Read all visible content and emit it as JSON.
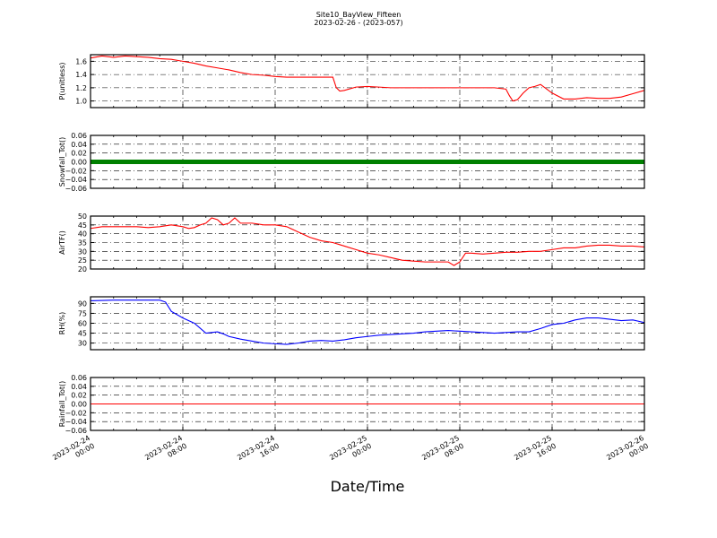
{
  "chart_data": {
    "type": "line",
    "title": "Site10_BayView_Fifteen",
    "subtitle": "2023-02-26 - (2023-057)",
    "xlabel": "Date/Time",
    "x_ticks": [
      "2023-02-24\n00:00",
      "2023-02-24\n08:00",
      "2023-02-24\n16:00",
      "2023-02-25\n00:00",
      "2023-02-25\n08:00",
      "2023-02-25\n16:00",
      "2023-02-26\n00:00"
    ],
    "x_range_hours": [
      0,
      48
    ],
    "grid": true,
    "panels": [
      {
        "ylabel": "P(unitless)",
        "ylim": [
          0.9,
          1.7
        ],
        "yticks": [
          "1.0",
          "1.2",
          "1.4",
          "1.6"
        ],
        "ytick_values": [
          1.0,
          1.2,
          1.4,
          1.6
        ],
        "color": "#ff0000",
        "style": "line",
        "x": [
          0,
          1,
          2,
          3,
          4,
          5,
          6,
          7,
          8,
          9,
          10,
          11,
          12,
          13,
          14,
          15,
          16,
          17,
          18,
          19,
          20,
          21,
          21.3,
          21.6,
          22,
          23,
          24,
          25,
          26,
          27,
          28,
          29,
          30,
          31,
          32,
          33,
          34,
          35,
          36,
          36.3,
          36.6,
          37,
          37.5,
          38,
          38.5,
          39,
          40,
          41,
          42,
          43,
          44,
          45,
          46,
          47,
          48
        ],
        "values": [
          1.65,
          1.68,
          1.66,
          1.68,
          1.67,
          1.66,
          1.64,
          1.63,
          1.6,
          1.57,
          1.53,
          1.5,
          1.47,
          1.43,
          1.4,
          1.39,
          1.37,
          1.36,
          1.36,
          1.36,
          1.36,
          1.36,
          1.2,
          1.15,
          1.16,
          1.21,
          1.22,
          1.21,
          1.2,
          1.2,
          1.2,
          1.2,
          1.2,
          1.2,
          1.2,
          1.2,
          1.2,
          1.2,
          1.18,
          1.08,
          1.0,
          1.02,
          1.12,
          1.2,
          1.22,
          1.25,
          1.12,
          1.03,
          1.03,
          1.05,
          1.04,
          1.04,
          1.06,
          1.11,
          1.16
        ]
      },
      {
        "ylabel": "Snowfall_Tot()",
        "ylim": [
          -0.06,
          0.06
        ],
        "yticks": [
          "0.06",
          "0.04",
          "0.02",
          "0.00",
          "−0.02",
          "−0.04",
          "−0.06"
        ],
        "ytick_values": [
          0.06,
          0.04,
          0.02,
          0.0,
          -0.02,
          -0.04,
          -0.06
        ],
        "color": "#008000",
        "style": "markers",
        "x": [
          0,
          48
        ],
        "values": [
          0.0,
          0.0
        ]
      },
      {
        "ylabel": "AirTF()",
        "ylim": [
          20,
          50
        ],
        "yticks": [
          "20",
          "25",
          "30",
          "35",
          "40",
          "45",
          "50"
        ],
        "ytick_values": [
          20,
          25,
          30,
          35,
          40,
          45,
          50
        ],
        "color": "#ff0000",
        "style": "line",
        "x": [
          0,
          1,
          2,
          3,
          4,
          5,
          6,
          7,
          8,
          8.5,
          9,
          9.5,
          10,
          10.5,
          11,
          11.5,
          12,
          12.5,
          13,
          14,
          15,
          16,
          17,
          18,
          19,
          20,
          21,
          22,
          23,
          24,
          25,
          26,
          27,
          28,
          29,
          30,
          31,
          31.5,
          32,
          32.5,
          33,
          34,
          35,
          36,
          37,
          38,
          39,
          40,
          41,
          42,
          43,
          44,
          45,
          46,
          47,
          48
        ],
        "values": [
          43,
          44,
          44,
          44,
          44,
          43.5,
          44,
          45,
          44,
          43,
          43.5,
          45,
          46,
          49,
          48,
          45,
          46,
          49,
          46,
          46,
          45,
          45,
          44,
          41,
          38,
          36,
          35,
          33,
          31,
          29,
          28,
          26.5,
          25,
          24.5,
          24,
          24,
          24,
          22,
          24,
          29,
          29,
          28.5,
          29,
          29.5,
          29.5,
          30,
          30,
          31,
          32,
          32,
          33,
          33.5,
          33.5,
          33,
          33,
          32.5
        ]
      },
      {
        "ylabel": "RH(%)",
        "ylim": [
          20,
          100
        ],
        "yticks": [
          "30",
          "45",
          "60",
          "75",
          "90"
        ],
        "ytick_values": [
          30,
          45,
          60,
          75,
          90
        ],
        "color": "#0000ff",
        "style": "line",
        "x": [
          0,
          1,
          2,
          3,
          4,
          5,
          6,
          6.5,
          7,
          8,
          9,
          10,
          11,
          11.5,
          12,
          13,
          14,
          15,
          16,
          17,
          18,
          19,
          20,
          21,
          22,
          23,
          24,
          25,
          26,
          27,
          28,
          29,
          30,
          31,
          32,
          33,
          34,
          35,
          36,
          37,
          38,
          39,
          40,
          41,
          42,
          43,
          44,
          45,
          46,
          47,
          48
        ],
        "values": [
          94,
          94.5,
          95,
          95,
          95,
          95,
          95,
          92,
          78,
          68,
          60,
          45,
          47,
          44,
          40,
          36,
          33,
          30,
          29,
          28,
          30,
          33,
          34,
          33,
          35,
          38,
          40,
          42,
          43,
          44,
          45,
          47,
          48,
          49,
          48,
          47,
          46,
          45,
          46,
          47,
          47,
          52,
          58,
          60,
          65,
          68,
          68,
          66,
          64,
          65,
          61
        ]
      },
      {
        "ylabel": "Rainfall_Tot()",
        "ylim": [
          -0.06,
          0.06
        ],
        "yticks": [
          "0.06",
          "0.04",
          "0.02",
          "0.00",
          "−0.02",
          "−0.04",
          "−0.06"
        ],
        "ytick_values": [
          0.06,
          0.04,
          0.02,
          0.0,
          -0.02,
          -0.04,
          -0.06
        ],
        "color": "#ff0000",
        "style": "line",
        "x": [
          0,
          48
        ],
        "values": [
          0.0,
          0.0
        ]
      }
    ]
  }
}
